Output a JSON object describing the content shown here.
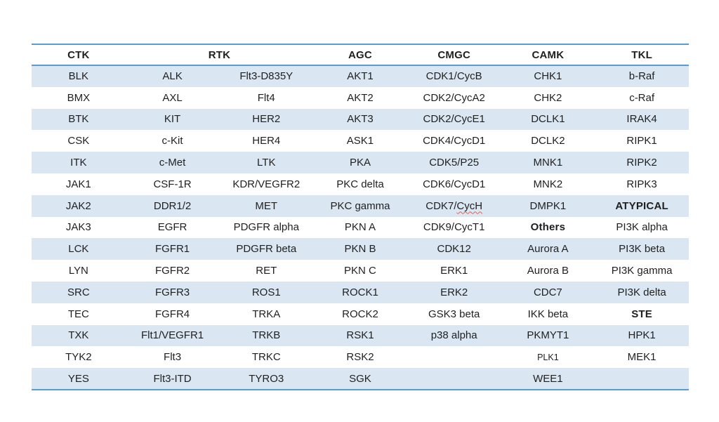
{
  "colors": {
    "stripe": "#dae7f3",
    "border": "#5b9bd5",
    "text": "#1f1f1f",
    "squiggle": "#e0614f",
    "page_background": "#ffffff"
  },
  "table": {
    "headers": [
      {
        "label": "CTK",
        "span": 1
      },
      {
        "label": "RTK",
        "span": 2
      },
      {
        "label": "AGC",
        "span": 1
      },
      {
        "label": "CMGC",
        "span": 1
      },
      {
        "label": "CAMK",
        "span": 1
      },
      {
        "label": "TKL",
        "span": 1
      }
    ],
    "rows": [
      [
        {
          "text": "BLK"
        },
        {
          "text": "ALK"
        },
        {
          "text": "Flt3-D835Y"
        },
        {
          "text": "AKT1"
        },
        {
          "text": "CDK1/CycB"
        },
        {
          "text": "CHK1"
        },
        {
          "text": "b-Raf"
        }
      ],
      [
        {
          "text": "BMX"
        },
        {
          "text": "AXL"
        },
        {
          "text": "Flt4"
        },
        {
          "text": "AKT2"
        },
        {
          "text": "CDK2/CycA2"
        },
        {
          "text": "CHK2"
        },
        {
          "text": "c-Raf"
        }
      ],
      [
        {
          "text": "BTK"
        },
        {
          "text": "KIT"
        },
        {
          "text": "HER2"
        },
        {
          "text": "AKT3"
        },
        {
          "text": "CDK2/CycE1"
        },
        {
          "text": "DCLK1"
        },
        {
          "text": "IRAK4"
        }
      ],
      [
        {
          "text": "CSK"
        },
        {
          "text": "c-Kit"
        },
        {
          "text": "HER4"
        },
        {
          "text": "ASK1"
        },
        {
          "text": "CDK4/CycD1"
        },
        {
          "text": "DCLK2"
        },
        {
          "text": "RIPK1"
        }
      ],
      [
        {
          "text": "ITK"
        },
        {
          "text": "c-Met"
        },
        {
          "text": "LTK"
        },
        {
          "text": "PKA"
        },
        {
          "text": "CDK5/P25"
        },
        {
          "text": "MNK1"
        },
        {
          "text": "RIPK2"
        }
      ],
      [
        {
          "text": "JAK1"
        },
        {
          "text": "CSF-1R"
        },
        {
          "text": "KDR/VEGFR2"
        },
        {
          "text": "PKC delta"
        },
        {
          "text": "CDK6/CycD1"
        },
        {
          "text": "MNK2"
        },
        {
          "text": "RIPK3"
        }
      ],
      [
        {
          "text": "JAK2"
        },
        {
          "text": "DDR1/2"
        },
        {
          "text": "MET"
        },
        {
          "text": "PKC gamma"
        },
        {
          "text": "CDK7/CycH",
          "parts": [
            {
              "t": "CDK7/"
            },
            {
              "t": "CycH",
              "squiggle": true
            }
          ]
        },
        {
          "text": "DMPK1"
        },
        {
          "text": "ATYPICAL",
          "bold": true
        }
      ],
      [
        {
          "text": "JAK3"
        },
        {
          "text": "EGFR"
        },
        {
          "text": "PDGFR alpha"
        },
        {
          "text": "PKN A"
        },
        {
          "text": "CDK9/CycT1"
        },
        {
          "text": "Others",
          "bold": true
        },
        {
          "text": "PI3K alpha"
        }
      ],
      [
        {
          "text": "LCK"
        },
        {
          "text": "FGFR1"
        },
        {
          "text": "PDGFR beta"
        },
        {
          "text": "PKN B"
        },
        {
          "text": "CDK12"
        },
        {
          "text": "Aurora A"
        },
        {
          "text": "PI3K beta"
        }
      ],
      [
        {
          "text": "LYN"
        },
        {
          "text": "FGFR2"
        },
        {
          "text": "RET"
        },
        {
          "text": "PKN C"
        },
        {
          "text": "ERK1"
        },
        {
          "text": "Aurora B"
        },
        {
          "text": "PI3K gamma"
        }
      ],
      [
        {
          "text": "SRC"
        },
        {
          "text": "FGFR3"
        },
        {
          "text": "ROS1"
        },
        {
          "text": "ROCK1"
        },
        {
          "text": "ERK2"
        },
        {
          "text": "CDC7"
        },
        {
          "text": "PI3K delta"
        }
      ],
      [
        {
          "text": "TEC"
        },
        {
          "text": "FGFR4"
        },
        {
          "text": "TRKA"
        },
        {
          "text": "ROCK2"
        },
        {
          "text": "GSK3 beta"
        },
        {
          "text": "IKK beta"
        },
        {
          "text": "STE",
          "bold": true
        }
      ],
      [
        {
          "text": "TXK"
        },
        {
          "text": "Flt1/VEGFR1"
        },
        {
          "text": "TRKB"
        },
        {
          "text": "RSK1"
        },
        {
          "text": "p38 alpha"
        },
        {
          "text": "PKMYT1"
        },
        {
          "text": "HPK1"
        }
      ],
      [
        {
          "text": "TYK2"
        },
        {
          "text": "Flt3"
        },
        {
          "text": "TRKC"
        },
        {
          "text": "RSK2"
        },
        {
          "text": ""
        },
        {
          "text": "PLK1",
          "small": true
        },
        {
          "text": "MEK1"
        }
      ],
      [
        {
          "text": "YES"
        },
        {
          "text": "Flt3-ITD"
        },
        {
          "text": "TYRO3"
        },
        {
          "text": "SGK"
        },
        {
          "text": ""
        },
        {
          "text": "WEE1"
        },
        {
          "text": ""
        }
      ]
    ]
  }
}
